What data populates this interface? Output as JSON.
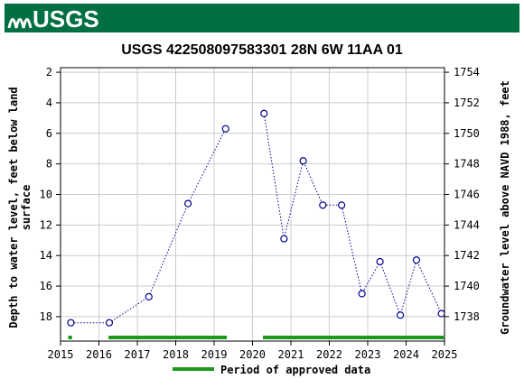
{
  "header": {
    "logo_text": "USGS",
    "logo_icon": "usgs-wave-icon",
    "bg_color": "#006f41"
  },
  "chart_data": {
    "type": "scatter",
    "title": "USGS 422508097583301 28N 6W 11AA  01",
    "ylabel_left_lines": [
      "Depth to water level, feet below land",
      "surface"
    ],
    "ylabel_right": "Groundwater level above NAVD 1988, feet",
    "x_ticks": [
      "2015",
      "2016",
      "2017",
      "2018",
      "2019",
      "2020",
      "2021",
      "2022",
      "2023",
      "2024",
      "2025"
    ],
    "x_range": [
      2015.0,
      2025.0
    ],
    "y_left_ticks": [
      "2",
      "4",
      "6",
      "8",
      "10",
      "12",
      "14",
      "16",
      "18"
    ],
    "y_left_range": [
      1.7,
      19.6
    ],
    "y_left_inverted": true,
    "y_right_ticks": [
      "1754",
      "1752",
      "1750",
      "1748",
      "1746",
      "1744",
      "1742",
      "1740",
      "1738"
    ],
    "datum_offset": 1756.0,
    "grid": true,
    "series": [
      {
        "marker": "open-circle",
        "line": "dotted",
        "color": "#00008b",
        "segments": [
          [
            [
              2015.27,
              18.4
            ],
            [
              2016.27,
              18.4
            ],
            [
              2017.3,
              16.7
            ],
            [
              2018.32,
              10.6
            ],
            [
              2019.3,
              5.7
            ]
          ],
          [
            [
              2020.3,
              4.7
            ],
            [
              2020.82,
              12.9
            ],
            [
              2021.32,
              7.8
            ],
            [
              2021.83,
              10.7
            ],
            [
              2022.32,
              10.7
            ],
            [
              2022.85,
              16.5
            ],
            [
              2023.32,
              14.4
            ],
            [
              2023.85,
              17.9
            ],
            [
              2024.27,
              14.3
            ],
            [
              2024.92,
              17.8
            ]
          ]
        ]
      }
    ],
    "approved_periods": {
      "color": "#1a9a1a",
      "ranges": [
        [
          2015.2,
          2015.3
        ],
        [
          2016.25,
          2019.33
        ],
        [
          2020.27,
          2024.98
        ]
      ]
    },
    "legend": {
      "label": "Period of approved data",
      "placement": "bottom-center"
    }
  }
}
